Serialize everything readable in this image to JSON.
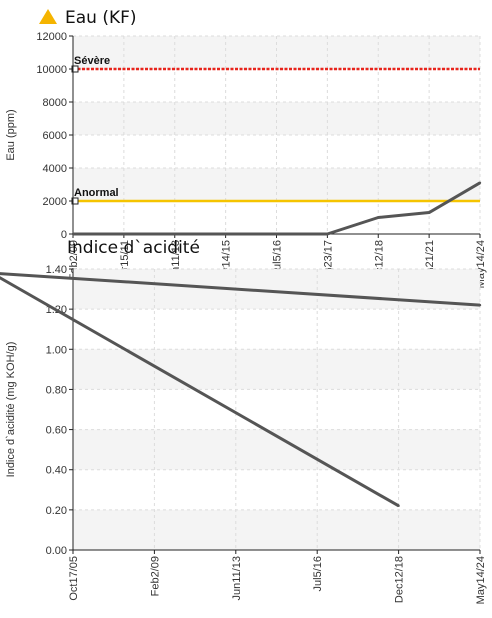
{
  "charts": [
    {
      "title": "Eau (KF)",
      "icon": "warning-triangle-icon",
      "icon_color": "#f5b400"
    },
    {
      "title": "Indice d`acidité"
    }
  ],
  "chart_data": [
    {
      "type": "line",
      "title": "Eau (KF)",
      "ylabel": "Eau (ppm)",
      "xlabel": "",
      "ylim": [
        0,
        12000
      ],
      "yticks": [
        "0",
        "2000",
        "4000",
        "6000",
        "8000",
        "10000",
        "12000"
      ],
      "xticks": [
        "Feb2/09",
        "Mar15/11",
        "Jun11/13",
        "May14/15",
        "Jul5/16",
        "Aug23/17",
        "Dec12/18",
        "Jan21/21",
        "May14/24"
      ],
      "grid": true,
      "series": [
        {
          "name": "",
          "color": "#555555",
          "x": [
            "Feb2/09",
            "Mar15/11",
            "Jun11/13",
            "May14/15",
            "Jul5/16",
            "Aug23/17",
            "Dec12/18",
            "Jan21/21",
            "May14/24"
          ],
          "y": [
            0,
            0,
            0,
            0,
            0,
            0,
            1000,
            1300,
            3100
          ]
        }
      ],
      "thresholds": [
        {
          "label": "Sévère",
          "value": 10000,
          "color": "#e8241c"
        },
        {
          "label": "Anormal",
          "value": 2000,
          "color": "#f5c400"
        }
      ]
    },
    {
      "type": "line",
      "title": "Indice d`acidité",
      "ylabel": "Indice d`acidité (mg KOH/g)",
      "xlabel": "",
      "ylim": [
        0,
        1.4
      ],
      "yticks": [
        "0.00",
        "0.20",
        "0.40",
        "0.60",
        "0.80",
        "1.00",
        "1.20",
        "1.40"
      ],
      "xticks": [
        "Oct17/05",
        "Feb2/09",
        "Jun11/13",
        "Jul5/16",
        "Dec12/18",
        "May14/24"
      ],
      "grid": true,
      "series": [
        {
          "name": "",
          "color": "#555555",
          "x": [
            "Dec12/18",
            "Jan21/21",
            "May14/24"
          ],
          "y": [
            0.22,
            1.38,
            1.22
          ]
        }
      ]
    }
  ]
}
